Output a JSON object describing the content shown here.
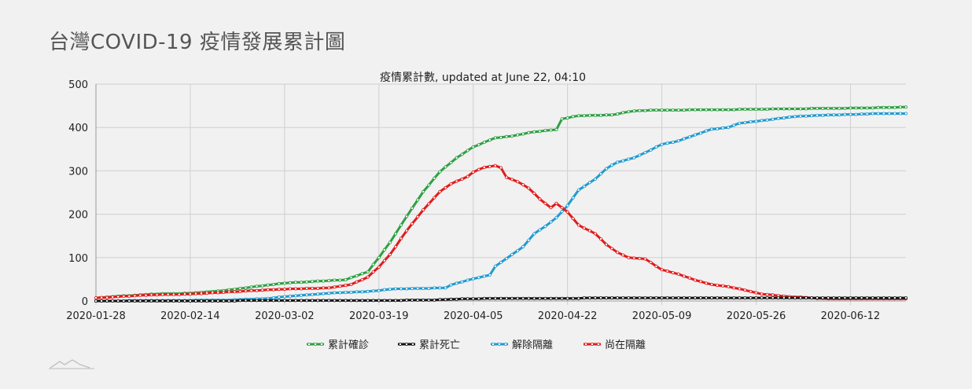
{
  "page": {
    "title": "台灣COVID-19 疫情發展累計圖"
  },
  "chart_data": {
    "type": "line",
    "title": "疫情累計數, updated at June 22, 04:10",
    "x_ticks": [
      "2020-01-28",
      "2020-02-14",
      "2020-03-02",
      "2020-03-19",
      "2020-04-05",
      "2020-04-22",
      "2020-05-09",
      "2020-05-26",
      "2020-06-12"
    ],
    "x_start": "2020-01-28",
    "x_end": "2020-06-22",
    "ylim": [
      0,
      500
    ],
    "y_ticks": [
      0,
      100,
      200,
      300,
      400,
      500
    ],
    "grid": true,
    "legend_position": "bottom",
    "series": [
      {
        "name": "累計確診",
        "color": "#2ea043",
        "points": [
          [
            "2020-01-28",
            7
          ],
          [
            "2020-02-07",
            16
          ],
          [
            "2020-02-14",
            18
          ],
          [
            "2020-02-20",
            24
          ],
          [
            "2020-03-01",
            40
          ],
          [
            "2020-03-07",
            45
          ],
          [
            "2020-03-13",
            49
          ],
          [
            "2020-03-17",
            67
          ],
          [
            "2020-03-19",
            100
          ],
          [
            "2020-03-21",
            135
          ],
          [
            "2020-03-24",
            195
          ],
          [
            "2020-03-27",
            252
          ],
          [
            "2020-03-30",
            298
          ],
          [
            "2020-04-02",
            330
          ],
          [
            "2020-04-05",
            355
          ],
          [
            "2020-04-09",
            376
          ],
          [
            "2020-04-12",
            380
          ],
          [
            "2020-04-15",
            388
          ],
          [
            "2020-04-18",
            393
          ],
          [
            "2020-04-20",
            395
          ],
          [
            "2020-04-21",
            420
          ],
          [
            "2020-04-24",
            427
          ],
          [
            "2020-04-30",
            429
          ],
          [
            "2020-05-04",
            438
          ],
          [
            "2020-05-08",
            440
          ],
          [
            "2020-05-20",
            441
          ],
          [
            "2020-06-01",
            443
          ],
          [
            "2020-06-15",
            445
          ],
          [
            "2020-06-22",
            447
          ]
        ]
      },
      {
        "name": "累計死亡",
        "color": "#111111",
        "points": [
          [
            "2020-01-28",
            0
          ],
          [
            "2020-03-19",
            1
          ],
          [
            "2020-03-29",
            2
          ],
          [
            "2020-04-04",
            5
          ],
          [
            "2020-04-09",
            6
          ],
          [
            "2020-05-10",
            7
          ],
          [
            "2020-06-22",
            7
          ]
        ]
      },
      {
        "name": "解除隔離",
        "color": "#1f9bd0",
        "points": [
          [
            "2020-01-28",
            0
          ],
          [
            "2020-02-20",
            2
          ],
          [
            "2020-02-27",
            5
          ],
          [
            "2020-03-04",
            12
          ],
          [
            "2020-03-10",
            18
          ],
          [
            "2020-03-17",
            22
          ],
          [
            "2020-03-22",
            28
          ],
          [
            "2020-03-31",
            30
          ],
          [
            "2020-04-01",
            37
          ],
          [
            "2020-04-04",
            48
          ],
          [
            "2020-04-08",
            60
          ],
          [
            "2020-04-09",
            80
          ],
          [
            "2020-04-12",
            107
          ],
          [
            "2020-04-14",
            125
          ],
          [
            "2020-04-16",
            155
          ],
          [
            "2020-04-18",
            172
          ],
          [
            "2020-04-20",
            192
          ],
          [
            "2020-04-22",
            220
          ],
          [
            "2020-04-24",
            256
          ],
          [
            "2020-04-27",
            281
          ],
          [
            "2020-04-29",
            305
          ],
          [
            "2020-05-01",
            320
          ],
          [
            "2020-05-04",
            330
          ],
          [
            "2020-05-06",
            342
          ],
          [
            "2020-05-09",
            361
          ],
          [
            "2020-05-12",
            369
          ],
          [
            "2020-05-15",
            383
          ],
          [
            "2020-05-18",
            396
          ],
          [
            "2020-05-21",
            400
          ],
          [
            "2020-05-23",
            410
          ],
          [
            "2020-05-28",
            417
          ],
          [
            "2020-06-01",
            424
          ],
          [
            "2020-06-06",
            428
          ],
          [
            "2020-06-12",
            430
          ],
          [
            "2020-06-17",
            432
          ],
          [
            "2020-06-22",
            432
          ]
        ]
      },
      {
        "name": "尚在隔離",
        "color": "#e21b1b",
        "points": [
          [
            "2020-01-28",
            7
          ],
          [
            "2020-02-07",
            14
          ],
          [
            "2020-02-14",
            16
          ],
          [
            "2020-02-20",
            20
          ],
          [
            "2020-02-27",
            25
          ],
          [
            "2020-03-04",
            28
          ],
          [
            "2020-03-10",
            30
          ],
          [
            "2020-03-14",
            38
          ],
          [
            "2020-03-17",
            55
          ],
          [
            "2020-03-19",
            78
          ],
          [
            "2020-03-21",
            107
          ],
          [
            "2020-03-24",
            162
          ],
          [
            "2020-03-27",
            210
          ],
          [
            "2020-03-30",
            252
          ],
          [
            "2020-04-01",
            270
          ],
          [
            "2020-04-04",
            287
          ],
          [
            "2020-04-05",
            297
          ],
          [
            "2020-04-07",
            308
          ],
          [
            "2020-04-09",
            312
          ],
          [
            "2020-04-10",
            307
          ],
          [
            "2020-04-11",
            285
          ],
          [
            "2020-04-13",
            275
          ],
          [
            "2020-04-15",
            260
          ],
          [
            "2020-04-17",
            235
          ],
          [
            "2020-04-19",
            215
          ],
          [
            "2020-04-20",
            225
          ],
          [
            "2020-04-22",
            205
          ],
          [
            "2020-04-24",
            175
          ],
          [
            "2020-04-27",
            155
          ],
          [
            "2020-04-29",
            130
          ],
          [
            "2020-05-01",
            112
          ],
          [
            "2020-05-03",
            100
          ],
          [
            "2020-05-06",
            97
          ],
          [
            "2020-05-09",
            72
          ],
          [
            "2020-05-12",
            62
          ],
          [
            "2020-05-15",
            48
          ],
          [
            "2020-05-18",
            38
          ],
          [
            "2020-05-21",
            33
          ],
          [
            "2020-05-24",
            25
          ],
          [
            "2020-05-27",
            16
          ],
          [
            "2020-06-01",
            10
          ],
          [
            "2020-06-08",
            5
          ],
          [
            "2020-06-22",
            5
          ]
        ]
      }
    ]
  }
}
